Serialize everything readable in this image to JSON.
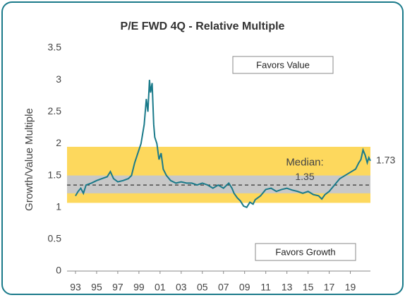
{
  "chart_data": {
    "type": "line",
    "title": "P/E FWD 4Q - Relative Multiple",
    "y_label": "Growth/Value Multiple",
    "x": [
      1993.0,
      1993.25,
      1993.5,
      1993.75,
      1994.0,
      1994.5,
      1995.0,
      1995.5,
      1996.0,
      1996.3,
      1996.6,
      1997.0,
      1997.5,
      1998.0,
      1998.3,
      1998.6,
      1998.9,
      1999.2,
      1999.5,
      1999.7,
      1999.85,
      2000.0,
      2000.1,
      2000.25,
      2000.4,
      2000.5,
      2000.7,
      2000.9,
      2001.1,
      2001.3,
      2001.6,
      2002.0,
      2002.5,
      2003.0,
      2003.5,
      2004.0,
      2004.5,
      2005.0,
      2005.5,
      2006.0,
      2006.5,
      2007.0,
      2007.5,
      2007.8,
      2008.0,
      2008.3,
      2008.6,
      2008.9,
      2009.2,
      2009.5,
      2009.8,
      2010.0,
      2010.5,
      2011.0,
      2011.5,
      2012.0,
      2012.5,
      2013.0,
      2013.5,
      2014.0,
      2014.5,
      2015.0,
      2015.5,
      2016.0,
      2016.3,
      2016.6,
      2017.0,
      2017.5,
      2018.0,
      2018.5,
      2019.0,
      2019.5,
      2019.8,
      2020.0,
      2020.2,
      2020.4,
      2020.6,
      2020.75,
      2020.9
    ],
    "series": [
      {
        "name": "Growth/Value Multiple",
        "color": "#1a7a8a",
        "values": [
          1.18,
          1.25,
          1.3,
          1.22,
          1.35,
          1.38,
          1.42,
          1.45,
          1.48,
          1.56,
          1.45,
          1.4,
          1.42,
          1.45,
          1.5,
          1.7,
          1.85,
          2.0,
          2.3,
          2.7,
          2.5,
          3.0,
          2.8,
          2.95,
          2.3,
          2.1,
          2.0,
          1.75,
          1.85,
          1.6,
          1.5,
          1.42,
          1.38,
          1.4,
          1.38,
          1.38,
          1.35,
          1.38,
          1.35,
          1.3,
          1.35,
          1.3,
          1.38,
          1.3,
          1.22,
          1.15,
          1.1,
          1.02,
          1.0,
          1.08,
          1.05,
          1.12,
          1.18,
          1.28,
          1.3,
          1.25,
          1.28,
          1.3,
          1.27,
          1.25,
          1.22,
          1.25,
          1.2,
          1.18,
          1.13,
          1.2,
          1.25,
          1.35,
          1.45,
          1.5,
          1.55,
          1.6,
          1.7,
          1.75,
          1.9,
          1.82,
          1.7,
          1.78,
          1.73
        ]
      }
    ],
    "end_label": 1.73,
    "median": {
      "label": "Median:",
      "value": 1.35
    },
    "bands": [
      {
        "from": 1.07,
        "to": 1.95,
        "color": "#fdd85d"
      },
      {
        "from": 1.22,
        "to": 1.5,
        "color": "#c8c8c8"
      }
    ],
    "annotations": [
      "Favors Value",
      "Favors Growth"
    ],
    "xlim": [
      1992.2,
      2020.9
    ],
    "xticks": [
      {
        "value": 1993,
        "label": "93"
      },
      {
        "value": 1995,
        "label": "95"
      },
      {
        "value": 1997,
        "label": "97"
      },
      {
        "value": 1999,
        "label": "99"
      },
      {
        "value": 2001,
        "label": "01"
      },
      {
        "value": 2003,
        "label": "03"
      },
      {
        "value": 2005,
        "label": "05"
      },
      {
        "value": 2007,
        "label": "07"
      },
      {
        "value": 2009,
        "label": "09"
      },
      {
        "value": 2011,
        "label": "11"
      },
      {
        "value": 2013,
        "label": "13"
      },
      {
        "value": 2015,
        "label": "15"
      },
      {
        "value": 2017,
        "label": "17"
      },
      {
        "value": 2019,
        "label": "19"
      }
    ],
    "ylim": [
      0,
      3.5
    ],
    "yticks": [
      0,
      0.5,
      1,
      1.5,
      2,
      2.5,
      3,
      3.5
    ]
  }
}
